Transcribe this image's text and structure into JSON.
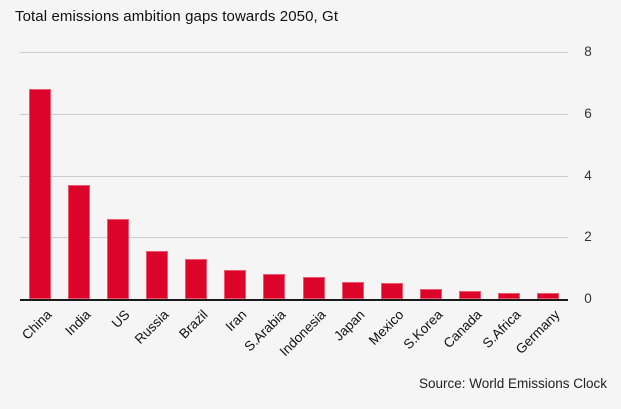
{
  "chart_data": {
    "type": "bar",
    "title": "Total emissions ambition gaps towards 2050, Gt",
    "categories": [
      "China",
      "India",
      "US",
      "Russia",
      "Brazil",
      "Iran",
      "S.Arabia",
      "Indonesia",
      "Japan",
      "Mexico",
      "S.Korea",
      "Canada",
      "S.Africa",
      "Germany"
    ],
    "values": [
      6.8,
      3.7,
      2.6,
      1.55,
      1.3,
      0.95,
      0.8,
      0.72,
      0.56,
      0.53,
      0.32,
      0.26,
      0.2,
      0.19
    ],
    "unit": "Gt",
    "xlabel": "",
    "ylabel": "",
    "ylim": [
      0,
      8
    ],
    "yticks": [
      0,
      2,
      4,
      6,
      8
    ],
    "ytick_side": "right",
    "grid": true,
    "legend": "none",
    "source": "Source: World Emissions Clock",
    "colors": {
      "bar": "#dc0428",
      "background": "#f5f5f5",
      "gridline": "#cccccc",
      "axis": "#1a1a1a",
      "text": "#111111"
    }
  }
}
